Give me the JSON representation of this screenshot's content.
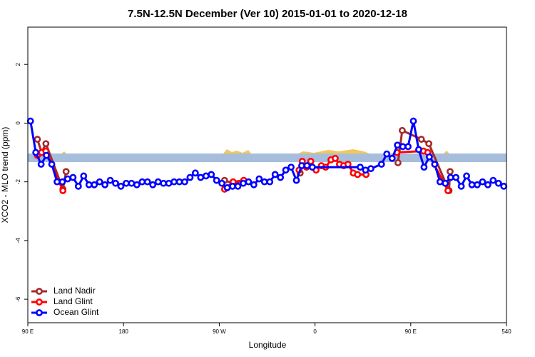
{
  "chart_data": {
    "type": "line",
    "title": "7.5N-12.5N December (Ver 10)   2015-01-01 to 2020-12-18",
    "x_label": "Longitude",
    "y_label": "XCO2 - MLO trend (ppm)",
    "xlim": [
      90,
      540
    ],
    "ylim": [
      -6.8,
      3.27
    ],
    "xticks": [
      {
        "value": 90,
        "label": "90 E"
      },
      180,
      {
        "value": 270,
        "label": "90 W"
      },
      {
        "value": 360,
        "label": "0"
      },
      {
        "value": 450,
        "label": "90 E"
      },
      540
    ],
    "yticks": [
      2,
      0,
      -2,
      -4,
      -6
    ],
    "legend": "bottom-left",
    "series": [
      {
        "name": "Land Nadir",
        "color": "#a52a2a",
        "x": [
          99,
          103,
          107,
          123,
          126,
          200,
          275,
          283,
          293,
          320,
          346,
          400,
          438,
          442,
          460,
          467,
          486,
          487
        ],
        "values": [
          -0.55,
          -1.0,
          -0.7,
          -2.25,
          -1.65,
          null,
          -1.95,
          -2.05,
          -1.95,
          null,
          -1.7,
          null,
          -1.35,
          -0.25,
          -0.55,
          -0.7,
          -2.3,
          -1.65
        ]
      },
      {
        "name": "Land Glint",
        "color": "#ff0000",
        "x": [
          99,
          103,
          107,
          123,
          200,
          275,
          283,
          293,
          320,
          345,
          348,
          352,
          356,
          361,
          366,
          370,
          375,
          379,
          383,
          387,
          391,
          396,
          400,
          408,
          430,
          437,
          462,
          466,
          485
        ],
        "values": [
          -1.1,
          -1.0,
          -0.95,
          -2.3,
          null,
          -2.25,
          -2.0,
          -1.95,
          null,
          -1.6,
          -1.3,
          -1.5,
          -1.3,
          -1.6,
          -1.45,
          -1.5,
          -1.25,
          -1.2,
          -1.4,
          -1.45,
          -1.4,
          -1.7,
          -1.75,
          -1.75,
          null,
          -1.0,
          -0.95,
          -1.0,
          -2.3
        ]
      },
      {
        "name": "Ocean Glint",
        "color": "#0000ff",
        "x": [
          92.5,
          97.5,
          102.5,
          107.5,
          112.5,
          117.5,
          122.5,
          127.5,
          132.5,
          137.5,
          142.5,
          147.5,
          152.5,
          157.5,
          162.5,
          167.5,
          172.5,
          177.5,
          182.5,
          187.5,
          192.5,
          197.5,
          202.5,
          207.5,
          212.5,
          217.5,
          222.5,
          227.5,
          232.5,
          237.5,
          242.5,
          247.5,
          252.5,
          257.5,
          262.5,
          267.5,
          272.5,
          277.5,
          282.5,
          287.5,
          292.5,
          297.5,
          302.5,
          307.5,
          312.5,
          317.5,
          322.5,
          327.5,
          332.5,
          337.5,
          342.5,
          347.5,
          352.5,
          357.5,
          402.5,
          407.5,
          412.5,
          422.5,
          427.5,
          432.5,
          437.5,
          442.5,
          447.5,
          452.5,
          457.5,
          462.5,
          467.5,
          472.5,
          477.5,
          482.5,
          487.5,
          492.5,
          497.5,
          502.5,
          507.5,
          512.5,
          517.5,
          522.5,
          527.5,
          532.5,
          537.5
        ],
        "values": [
          0.07,
          -1.0,
          -1.4,
          -1.1,
          -1.4,
          -2.0,
          -2.0,
          -1.9,
          -1.85,
          -2.15,
          -1.8,
          -2.1,
          -2.1,
          -2.0,
          -2.1,
          -1.95,
          -2.05,
          -2.15,
          -2.05,
          -2.05,
          -2.1,
          -2.0,
          -2.0,
          -2.1,
          -2.0,
          -2.05,
          -2.05,
          -2.0,
          -2.0,
          -2.0,
          -1.85,
          -1.7,
          -1.85,
          -1.8,
          -1.75,
          -1.95,
          -2.05,
          -2.2,
          -2.15,
          -2.15,
          -2.05,
          -2.0,
          -2.1,
          -1.9,
          -2.0,
          -2.0,
          -1.75,
          -1.85,
          -1.6,
          -1.5,
          -1.95,
          -1.45,
          -1.45,
          -1.5,
          -1.5,
          -1.6,
          -1.55,
          -1.4,
          -1.05,
          -1.2,
          -0.75,
          -0.8,
          -0.8,
          0.07,
          -0.9,
          -1.5,
          -1.15,
          -1.4,
          -2.0,
          -2.05,
          -1.85,
          -1.85,
          -2.15,
          -1.8,
          -2.1,
          -2.1,
          -2.0,
          -2.1,
          -1.95,
          -2.05,
          -2.15
        ]
      }
    ]
  }
}
